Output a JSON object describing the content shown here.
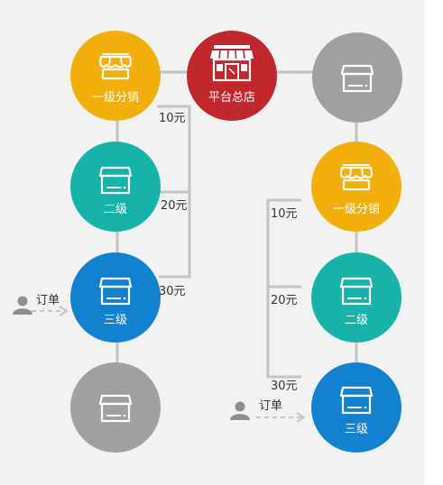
{
  "colors": {
    "distributor": "#f2ae0b",
    "hq": "#c0282d",
    "level2": "#17b3aa",
    "level3": "#1281cf",
    "inactive": "#a0a0a0",
    "connector": "#c4c4c4",
    "person": "#8e8e8e"
  },
  "nodes": {
    "left_level1": {
      "label": "一级分销",
      "icon": "awning-store-icon"
    },
    "hq": {
      "label": "平台总店",
      "icon": "storefront-icon"
    },
    "left_level2": {
      "label": "二级",
      "icon": "shop-icon"
    },
    "left_level3": {
      "label": "三级",
      "icon": "shop-icon"
    },
    "left_level4": {
      "label": "",
      "icon": "shop-icon"
    },
    "right_top": {
      "label": "",
      "icon": "shop-icon"
    },
    "right_level1": {
      "label": "一级分销",
      "icon": "awning-store-icon"
    },
    "right_level2": {
      "label": "二级",
      "icon": "shop-icon"
    },
    "right_level3": {
      "label": "三级",
      "icon": "shop-icon"
    }
  },
  "commissions": {
    "left": [
      "10元",
      "20元",
      "30元"
    ],
    "right": [
      "10元",
      "20元",
      "30元"
    ]
  },
  "orders": {
    "left": {
      "label": "订单",
      "icon": "person-icon"
    },
    "right": {
      "label": "订单",
      "icon": "person-icon"
    }
  }
}
